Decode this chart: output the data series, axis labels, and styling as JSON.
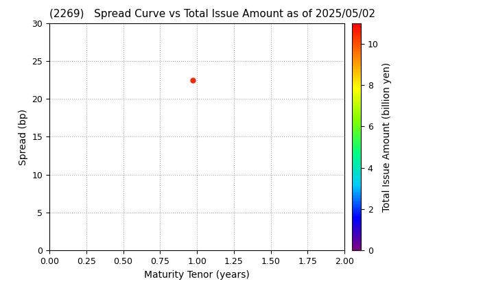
{
  "title": "(2269)   Spread Curve vs Total Issue Amount as of 2025/05/02",
  "xlabel": "Maturity Tenor (years)",
  "ylabel": "Spread (bp)",
  "colorbar_label": "Total Issue Amount (billion yen)",
  "xlim": [
    0.0,
    2.0
  ],
  "ylim": [
    0,
    30
  ],
  "xticks": [
    0.0,
    0.25,
    0.5,
    0.75,
    1.0,
    1.25,
    1.5,
    1.75,
    2.0
  ],
  "yticks": [
    0,
    5,
    10,
    15,
    20,
    25,
    30
  ],
  "colorbar_ticks": [
    0,
    2,
    4,
    6,
    8,
    10
  ],
  "colorbar_range": [
    0,
    11
  ],
  "scatter_x": [
    0.97
  ],
  "scatter_y": [
    22.5
  ],
  "scatter_color_value": [
    10.5
  ],
  "scatter_size": 25,
  "grid_color": "#aaaaaa",
  "background_color": "#ffffff",
  "title_fontsize": 11,
  "axis_label_fontsize": 10,
  "tick_fontsize": 9,
  "colorbar_label_fontsize": 10
}
